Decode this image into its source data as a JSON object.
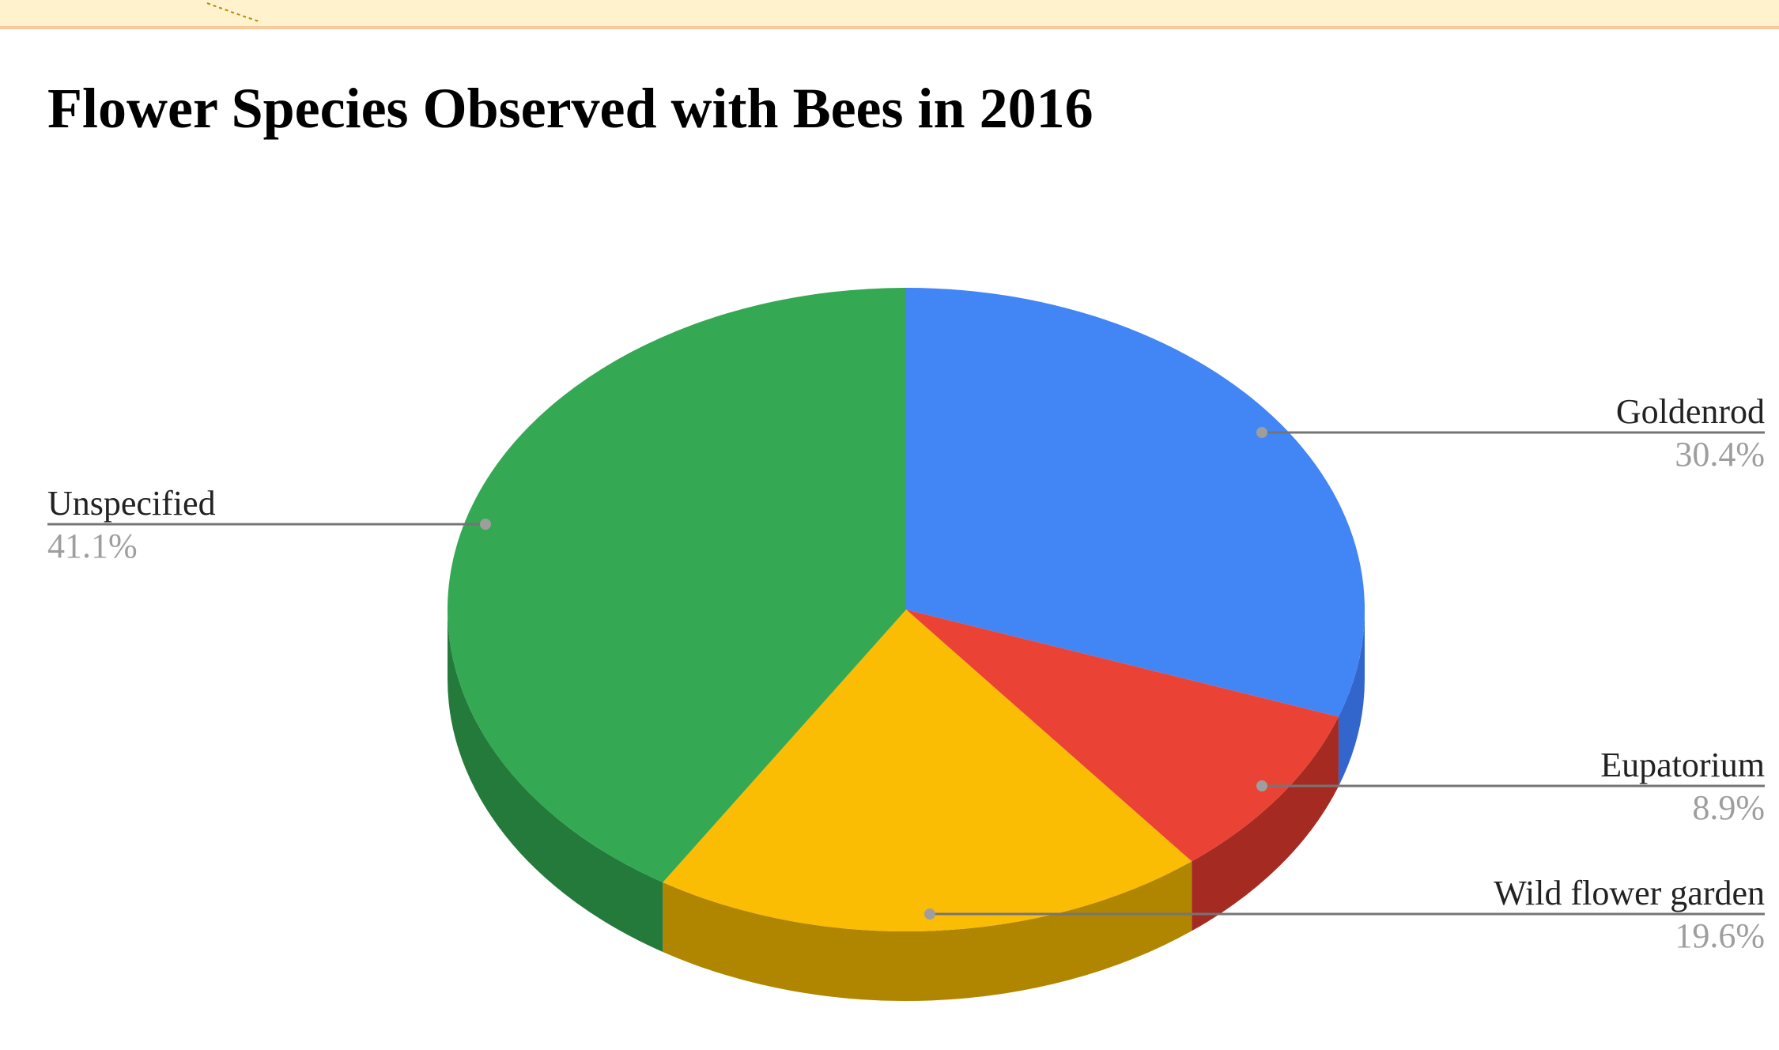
{
  "chart_data": {
    "type": "pie",
    "title": "Flower Species Observed with Bees in 2016",
    "three_d": true,
    "start_angle_deg": 0,
    "direction": "clockwise",
    "legend": "labeled",
    "slices": [
      {
        "label": "Goldenrod",
        "value": 30.4,
        "value_label": "30.4%",
        "color": "#4285f4",
        "side_color": "#3366cc"
      },
      {
        "label": "Eupatorium",
        "value": 8.9,
        "value_label": "8.9%",
        "color": "#ea4335",
        "side_color": "#a52a22"
      },
      {
        "label": "Wild flower garden",
        "value": 19.6,
        "value_label": "19.6%",
        "color": "#fbbc04",
        "side_color": "#b08500"
      },
      {
        "label": "Unspecified",
        "value": 41.1,
        "value_label": "41.1%",
        "color": "#34a853",
        "side_color": "#237a3a"
      }
    ]
  },
  "colors": {
    "banner_bg": "#fff2cc",
    "banner_border": "#f9cb9c",
    "leader_line": "#757575",
    "leader_dot": "#9e9e9e"
  }
}
